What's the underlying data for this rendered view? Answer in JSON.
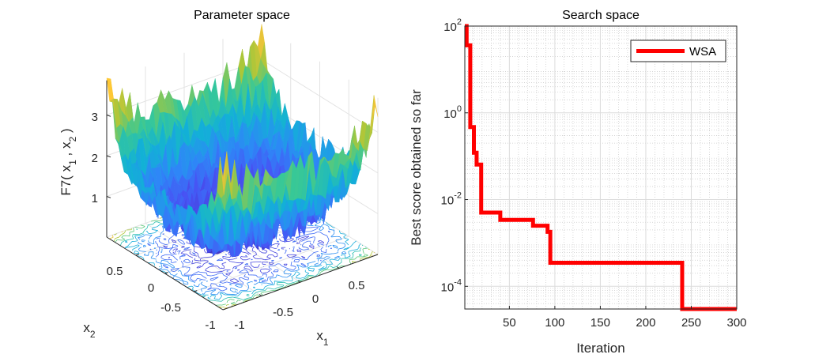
{
  "chart_data": [
    {
      "type": "surface",
      "title": "Parameter space",
      "xlabel": "x_1",
      "ylabel": "x_2",
      "zlabel": "F7( x_1 , x_2 )",
      "xlim": [
        -1,
        1
      ],
      "ylim": [
        -1,
        1
      ],
      "zticks": [
        "1",
        "2",
        "3"
      ],
      "xticks": [
        "-1",
        "-0.5",
        "0",
        "0.5"
      ],
      "yticks": [
        "0.5",
        "0",
        "-0.5",
        "-1"
      ],
      "colormap": "parula",
      "contour_on_floor": true,
      "grid": true
    },
    {
      "type": "line",
      "title": "Search space",
      "xlabel": "Iteration",
      "ylabel": "Best score obtained so far",
      "xlim": [
        1,
        300
      ],
      "ylim": [
        3e-05,
        100
      ],
      "yscale": "log",
      "grid": true,
      "minor_grid": true,
      "xticks": [
        "50",
        "100",
        "150",
        "200",
        "250",
        "300"
      ],
      "yticks": [
        {
          "base": "10",
          "exp": "2"
        },
        {
          "base": "10",
          "exp": "0"
        },
        {
          "base": "10",
          "exp": "-2"
        },
        {
          "base": "10",
          "exp": "-4"
        }
      ],
      "legend": {
        "position": "top-right"
      },
      "series": [
        {
          "name": "WSA",
          "color": "#ff0000",
          "x": [
            1,
            3,
            6,
            7,
            11,
            14,
            19,
            40,
            76,
            92,
            95,
            240,
            300
          ],
          "y": [
            100,
            36,
            36,
            0.47,
            0.12,
            0.064,
            0.005,
            0.0034,
            0.0025,
            0.0018,
            0.00035,
            3e-05,
            3e-05
          ]
        }
      ]
    }
  ]
}
